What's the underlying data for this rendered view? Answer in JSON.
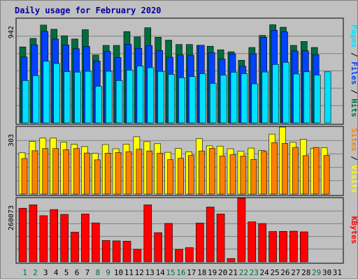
{
  "colors": {
    "background": "#c0c0c0",
    "title": "#0000a0",
    "hits": "#006d3e",
    "files": "#0042ff",
    "pages": "#00e0ff",
    "visits": "#ffff00",
    "sites": "#ff8000",
    "kbytes": "#ff0000",
    "weekend_day": "#006d3e",
    "weekday": "#000000"
  },
  "chart_data": [
    {
      "type": "bar",
      "title": "Daily usage for February 2020",
      "categories": [
        "1",
        "2",
        "3",
        "4",
        "5",
        "6",
        "7",
        "8",
        "9",
        "10",
        "11",
        "12",
        "13",
        "14",
        "15",
        "16",
        "17",
        "18",
        "19",
        "20",
        "21",
        "22",
        "23",
        "24",
        "25",
        "26",
        "27",
        "28",
        "29",
        "30",
        "31"
      ],
      "weekend_days": [
        "1",
        "2",
        "8",
        "9",
        "15",
        "16",
        "22",
        "23",
        "29"
      ],
      "max_label": "942",
      "ylim": [
        0,
        942
      ],
      "legend": [
        "Pages",
        "Files",
        "Hits"
      ],
      "series": [
        {
          "name": "Hits",
          "values": [
            688,
            765,
            886,
            848,
            789,
            759,
            844,
            615,
            702,
            702,
            827,
            778,
            862,
            776,
            749,
            710,
            710,
            703,
            694,
            662,
            644,
            567,
            683,
            792,
            889,
            866,
            702,
            737,
            683,
            0,
            0
          ]
        },
        {
          "name": "Files",
          "values": [
            596,
            707,
            828,
            759,
            706,
            672,
            692,
            560,
            647,
            592,
            711,
            675,
            699,
            655,
            594,
            615,
            613,
            703,
            637,
            578,
            625,
            513,
            625,
            775,
            839,
            824,
            651,
            653,
            617,
            0,
            0
          ]
        },
        {
          "name": "Pages",
          "values": [
            384,
            428,
            558,
            538,
            464,
            460,
            467,
            332,
            468,
            384,
            478,
            515,
            500,
            466,
            440,
            409,
            420,
            446,
            358,
            433,
            459,
            446,
            354,
            461,
            529,
            549,
            443,
            463,
            434,
            463,
            0
          ]
        }
      ]
    },
    {
      "type": "bar",
      "categories": [
        "1",
        "2",
        "3",
        "4",
        "5",
        "6",
        "7",
        "8",
        "9",
        "10",
        "11",
        "12",
        "13",
        "14",
        "15",
        "16",
        "17",
        "18",
        "19",
        "20",
        "21",
        "22",
        "23",
        "24",
        "25",
        "26",
        "27",
        "28",
        "29",
        "30",
        "31"
      ],
      "max_label": "303",
      "ylim": [
        0,
        303
      ],
      "legend": [
        "Sites",
        "Visits"
      ],
      "series": [
        {
          "name": "Visits",
          "values": [
            187,
            238,
            253,
            253,
            235,
            225,
            215,
            184,
            224,
            205,
            226,
            259,
            237,
            228,
            189,
            206,
            191,
            251,
            218,
            217,
            205,
            194,
            208,
            197,
            271,
            303,
            234,
            247,
            207,
            210,
            0
          ]
        },
        {
          "name": "Sites",
          "values": [
            161,
            196,
            206,
            206,
            201,
            206,
            186,
            155,
            185,
            188,
            192,
            203,
            195,
            185,
            156,
            162,
            175,
            195,
            207,
            172,
            178,
            172,
            157,
            193,
            233,
            229,
            211,
            174,
            211,
            175,
            0
          ]
        }
      ]
    },
    {
      "type": "bar",
      "categories": [
        "1",
        "2",
        "3",
        "4",
        "5",
        "6",
        "7",
        "8",
        "9",
        "10",
        "11",
        "12",
        "13",
        "14",
        "15",
        "16",
        "17",
        "18",
        "19",
        "20",
        "21",
        "22",
        "23",
        "24",
        "25",
        "26",
        "27",
        "28",
        "29",
        "30",
        "31"
      ],
      "max_label": "260073",
      "ylim": [
        0,
        260073
      ],
      "legend": [
        "KBytes"
      ],
      "series": [
        {
          "name": "KBytes",
          "values": [
            219550,
            233430,
            188893,
            214013,
            194282,
            121457,
            195671,
            159546,
            87382,
            85994,
            84606,
            51298,
            233430,
            119375,
            157464,
            51298,
            58238,
            158852,
            224408,
            195671,
            13825,
            260073,
            163710,
            156770,
            124233,
            124927,
            125621,
            122845,
            0,
            0,
            0
          ]
        }
      ]
    }
  ]
}
